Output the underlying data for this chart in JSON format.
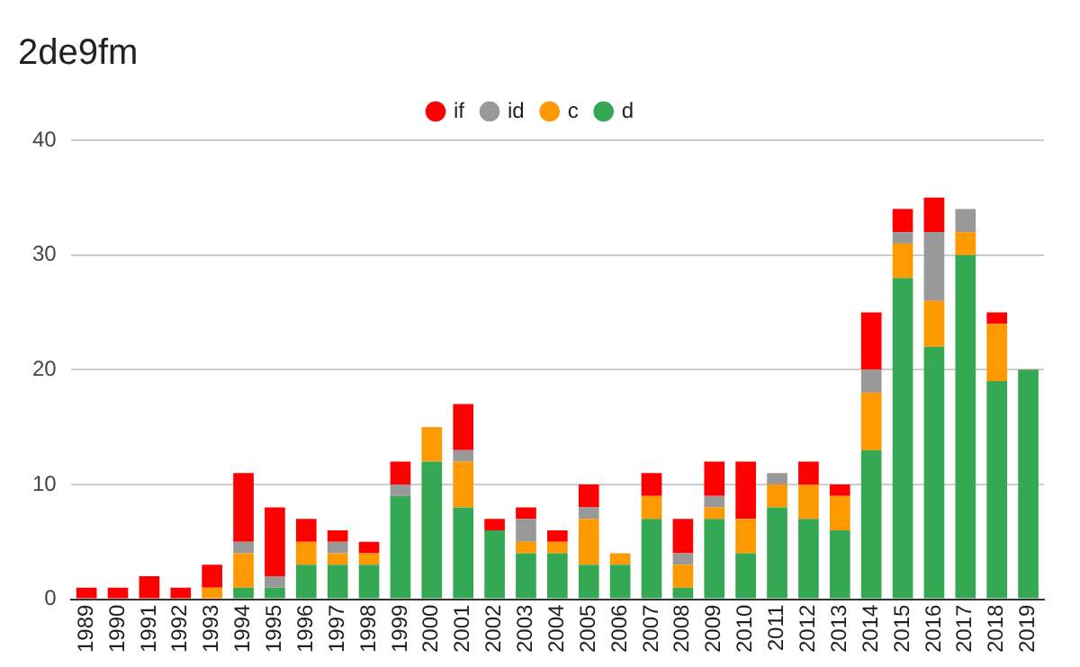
{
  "chart_data": {
    "type": "bar",
    "title": "2de9fm",
    "stacked": true,
    "legend": "top",
    "grid": "y",
    "categories": [
      "1989",
      "1990",
      "1991",
      "1992",
      "1993",
      "1994",
      "1995",
      "1996",
      "1997",
      "1998",
      "1999",
      "2000",
      "2001",
      "2002",
      "2003",
      "2004",
      "2005",
      "2006",
      "2007",
      "2008",
      "2009",
      "2010",
      "2011",
      "2012",
      "2013",
      "2014",
      "2015",
      "2016",
      "2017",
      "2018",
      "2019"
    ],
    "ylim": [
      0,
      40
    ],
    "yticks": [
      0,
      10,
      20,
      30,
      40
    ],
    "series": [
      {
        "name": "d",
        "color": "#34a853",
        "values": [
          0,
          0,
          0,
          0,
          0,
          1,
          1,
          3,
          3,
          3,
          9,
          12,
          8,
          6,
          4,
          4,
          3,
          3,
          7,
          1,
          7,
          4,
          8,
          7,
          6,
          13,
          28,
          22,
          30,
          19,
          20
        ]
      },
      {
        "name": "c",
        "color": "#ff9900",
        "values": [
          0,
          0,
          0,
          0,
          1,
          3,
          0,
          2,
          1,
          1,
          0,
          3,
          4,
          0,
          1,
          1,
          4,
          1,
          2,
          2,
          1,
          3,
          2,
          3,
          3,
          5,
          3,
          4,
          2,
          5,
          0
        ]
      },
      {
        "name": "id",
        "color": "#999999",
        "values": [
          0,
          0,
          0,
          0,
          0,
          1,
          1,
          0,
          1,
          0,
          1,
          0,
          1,
          0,
          2,
          0,
          1,
          0,
          0,
          1,
          1,
          0,
          1,
          0,
          0,
          2,
          1,
          6,
          2,
          0,
          0
        ]
      },
      {
        "name": "if",
        "color": "#ff0000",
        "values": [
          1,
          1,
          2,
          1,
          2,
          6,
          6,
          2,
          1,
          1,
          2,
          0,
          4,
          1,
          1,
          1,
          2,
          0,
          2,
          3,
          3,
          5,
          0,
          2,
          1,
          5,
          2,
          3,
          0,
          1,
          0
        ]
      }
    ]
  }
}
